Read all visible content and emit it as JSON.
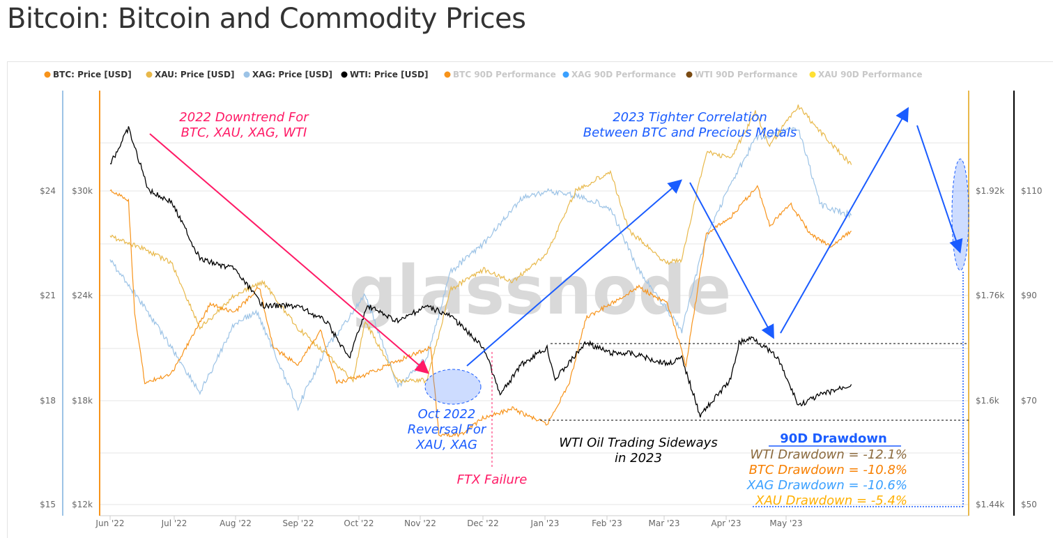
{
  "title": "Bitcoin: Bitcoin and Commodity Prices",
  "chart_data": {
    "type": "line",
    "title": "Bitcoin: Bitcoin and Commodity Prices",
    "watermark": "glassnode",
    "legend": [
      {
        "label": "BTC: Price [USD]",
        "color": "#f7931a",
        "active": true
      },
      {
        "label": "XAU: Price [USD]",
        "color": "#e8b84a",
        "active": true
      },
      {
        "label": "XAG: Price [USD]",
        "color": "#9cc3e6",
        "active": true
      },
      {
        "label": "WTI: Price [USD]",
        "color": "#000000",
        "active": true
      },
      {
        "label": "BTC 90D Performance",
        "color": "#f7931a",
        "active": false
      },
      {
        "label": "XAG 90D Performance",
        "color": "#3aa0ff",
        "active": false
      },
      {
        "label": "WTI 90D Performance",
        "color": "#7a4a12",
        "active": false
      },
      {
        "label": "XAU 90D Performance",
        "color": "#ffe033",
        "active": false
      }
    ],
    "x_ticks": [
      "Jun '22",
      "Jul '22",
      "Aug '22",
      "Sep '22",
      "Oct '22",
      "Nov '22",
      "Dec '22",
      "Jan '23",
      "Feb '23",
      "Mar '23",
      "Apr '23",
      "May '23"
    ],
    "axes": {
      "xag": {
        "ticks": [
          "$15",
          "$18",
          "$21",
          "$24"
        ],
        "range": [
          15,
          24
        ]
      },
      "btc": {
        "ticks": [
          "$12k",
          "$18k",
          "$24k",
          "$30k"
        ],
        "range": [
          12000,
          30000
        ]
      },
      "xau": {
        "ticks": [
          "$1.44k",
          "$1.6k",
          "$1.76k",
          "$1.92k"
        ],
        "range": [
          1440,
          1920
        ]
      },
      "wti": {
        "ticks": [
          "$50",
          "$70",
          "$90",
          "$110"
        ],
        "range": [
          50,
          110
        ]
      }
    },
    "series": [
      {
        "name": "BTC",
        "color": "#f7931a",
        "unit": "k",
        "points": [
          [
            "2022-06-01",
            30
          ],
          [
            "2022-06-10",
            29.5
          ],
          [
            "2022-06-13",
            23
          ],
          [
            "2022-06-18",
            19
          ],
          [
            "2022-07-01",
            19.5
          ],
          [
            "2022-07-20",
            23.5
          ],
          [
            "2022-08-01",
            23
          ],
          [
            "2022-08-13",
            24.5
          ],
          [
            "2022-08-20",
            21
          ],
          [
            "2022-09-01",
            20
          ],
          [
            "2022-09-12",
            22
          ],
          [
            "2022-09-20",
            19
          ],
          [
            "2022-10-01",
            19.3
          ],
          [
            "2022-10-25",
            20.5
          ],
          [
            "2022-11-05",
            21
          ],
          [
            "2022-11-09",
            16
          ],
          [
            "2022-11-20",
            16
          ],
          [
            "2022-12-01",
            17
          ],
          [
            "2022-12-15",
            17.5
          ],
          [
            "2023-01-01",
            16.6
          ],
          [
            "2023-01-12",
            19
          ],
          [
            "2023-01-20",
            22.7
          ],
          [
            "2023-02-01",
            23.5
          ],
          [
            "2023-02-15",
            24.5
          ],
          [
            "2023-03-01",
            23.5
          ],
          [
            "2023-03-10",
            20
          ],
          [
            "2023-03-13",
            22.3
          ],
          [
            "2023-03-20",
            27.5
          ],
          [
            "2023-04-01",
            28.5
          ],
          [
            "2023-04-14",
            30.3
          ],
          [
            "2023-04-20",
            28
          ],
          [
            "2023-04-30",
            29.3
          ],
          [
            "2023-05-10",
            27.5
          ],
          [
            "2023-05-20",
            26.8
          ],
          [
            "2023-05-30",
            27.7
          ]
        ]
      },
      {
        "name": "XAU",
        "color": "#e8b84a",
        "points": [
          [
            "2022-06-01",
            1850
          ],
          [
            "2022-06-15",
            1835
          ],
          [
            "2022-07-01",
            1810
          ],
          [
            "2022-07-15",
            1710
          ],
          [
            "2022-08-01",
            1760
          ],
          [
            "2022-08-15",
            1780
          ],
          [
            "2022-09-01",
            1710
          ],
          [
            "2022-09-15",
            1670
          ],
          [
            "2022-09-28",
            1630
          ],
          [
            "2022-10-04",
            1720
          ],
          [
            "2022-10-20",
            1630
          ],
          [
            "2022-11-03",
            1630
          ],
          [
            "2022-11-15",
            1770
          ],
          [
            "2022-12-01",
            1800
          ],
          [
            "2022-12-15",
            1780
          ],
          [
            "2023-01-01",
            1825
          ],
          [
            "2023-01-15",
            1920
          ],
          [
            "2023-02-01",
            1950
          ],
          [
            "2023-02-10",
            1860
          ],
          [
            "2023-02-28",
            1810
          ],
          [
            "2023-03-08",
            1815
          ],
          [
            "2023-03-20",
            1980
          ],
          [
            "2023-04-01",
            1970
          ],
          [
            "2023-04-13",
            2040
          ],
          [
            "2023-04-20",
            1990
          ],
          [
            "2023-05-04",
            2050
          ],
          [
            "2023-05-15",
            2010
          ],
          [
            "2023-05-30",
            1960
          ]
        ]
      },
      {
        "name": "XAG",
        "color": "#9cc3e6",
        "points": [
          [
            "2022-06-01",
            22
          ],
          [
            "2022-06-14",
            21
          ],
          [
            "2022-07-01",
            19.5
          ],
          [
            "2022-07-15",
            18.2
          ],
          [
            "2022-08-01",
            20.2
          ],
          [
            "2022-08-12",
            20.5
          ],
          [
            "2022-09-01",
            17.8
          ],
          [
            "2022-09-15",
            19.5
          ],
          [
            "2022-10-04",
            21
          ],
          [
            "2022-10-20",
            18.4
          ],
          [
            "2022-11-03",
            19.2
          ],
          [
            "2022-11-15",
            21.7
          ],
          [
            "2022-12-01",
            22.5
          ],
          [
            "2022-12-20",
            23.8
          ],
          [
            "2023-01-01",
            24
          ],
          [
            "2023-01-20",
            23.8
          ],
          [
            "2023-02-01",
            23.5
          ],
          [
            "2023-02-15",
            21.7
          ],
          [
            "2023-03-08",
            20
          ],
          [
            "2023-03-20",
            22.7
          ],
          [
            "2023-04-01",
            24.2
          ],
          [
            "2023-04-13",
            25.5
          ],
          [
            "2023-05-04",
            25.8
          ],
          [
            "2023-05-15",
            23.6
          ],
          [
            "2023-05-30",
            23.3
          ]
        ]
      },
      {
        "name": "WTI",
        "color": "#000000",
        "points": [
          [
            "2022-06-01",
            115
          ],
          [
            "2022-06-10",
            122
          ],
          [
            "2022-06-20",
            110
          ],
          [
            "2022-07-01",
            108
          ],
          [
            "2022-07-15",
            97
          ],
          [
            "2022-08-01",
            95
          ],
          [
            "2022-08-15",
            88
          ],
          [
            "2022-09-01",
            88
          ],
          [
            "2022-09-15",
            85
          ],
          [
            "2022-09-26",
            78
          ],
          [
            "2022-10-05",
            88
          ],
          [
            "2022-10-20",
            85
          ],
          [
            "2022-11-03",
            88
          ],
          [
            "2022-11-15",
            86
          ],
          [
            "2022-12-01",
            80
          ],
          [
            "2022-12-09",
            71
          ],
          [
            "2022-12-20",
            77
          ],
          [
            "2023-01-01",
            80
          ],
          [
            "2023-01-05",
            74
          ],
          [
            "2023-01-20",
            81
          ],
          [
            "2023-02-01",
            79
          ],
          [
            "2023-02-10",
            79
          ],
          [
            "2023-03-01",
            77
          ],
          [
            "2023-03-08",
            78
          ],
          [
            "2023-03-17",
            67
          ],
          [
            "2023-04-01",
            74
          ],
          [
            "2023-04-05",
            81
          ],
          [
            "2023-04-12",
            82
          ],
          [
            "2023-04-24",
            78
          ],
          [
            "2023-05-04",
            69
          ],
          [
            "2023-05-15",
            71
          ],
          [
            "2023-05-30",
            73
          ]
        ]
      }
    ],
    "annotations": {
      "downtrend": [
        "2022 Downtrend For",
        "BTC, XAU, XAG, WTI"
      ],
      "correlation": [
        "2023 Tighter Correlation",
        "Between BTC and Precious Metals"
      ],
      "reversal": [
        "Oct 2022",
        "Reversal For",
        "XAU, XAG"
      ],
      "ftx": "FTX Failure",
      "wti_sideways": [
        "WTI Oil Trading Sideways",
        "in 2023"
      ],
      "drawdown_title": "90D  Drawdown",
      "drawdowns": [
        {
          "text": "WTI Drawdown = -12.1%",
          "color": "#8b6a3e"
        },
        {
          "text": "BTC Drawdown = -10.8%",
          "color": "#f77f00"
        },
        {
          "text": "XAG Drawdown = -10.6%",
          "color": "#3aa0ff"
        },
        {
          "text": "XAU Drawdown = -5.4%",
          "color": "#ffb000"
        }
      ]
    }
  }
}
